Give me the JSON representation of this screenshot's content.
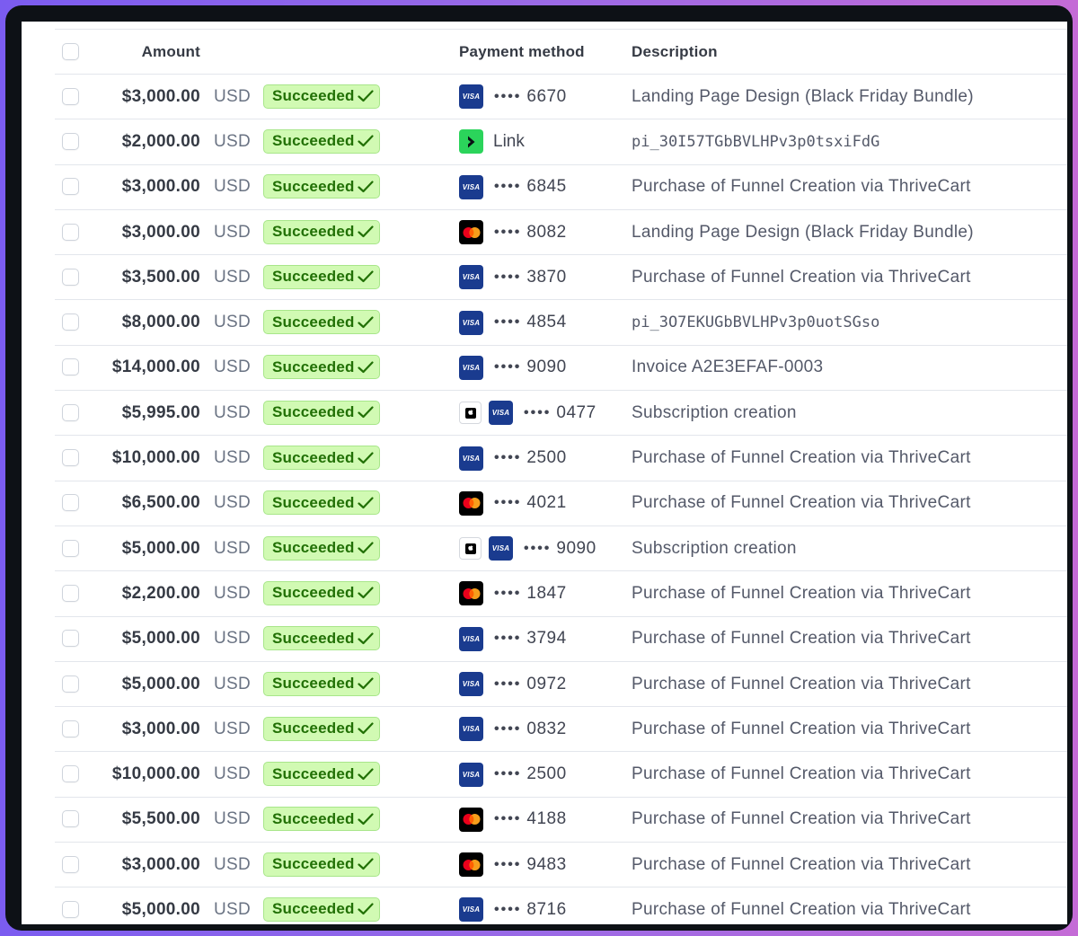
{
  "table": {
    "headers": {
      "amount": "Amount",
      "payment_method": "Payment method",
      "description": "Description"
    },
    "rows": [
      {
        "amount": "$3,000.00",
        "currency": "USD",
        "status": "Succeeded",
        "method": "visa",
        "last4": "6670",
        "description": "Landing Page Design (Black Friday Bundle)",
        "mono": false
      },
      {
        "amount": "$2,000.00",
        "currency": "USD",
        "status": "Succeeded",
        "method": "link",
        "link_label": "Link",
        "description": "pi_30I57TGbBVLHPv3p0tsxiFdG",
        "mono": true
      },
      {
        "amount": "$3,000.00",
        "currency": "USD",
        "status": "Succeeded",
        "method": "visa",
        "last4": "6845",
        "description": "Purchase of Funnel Creation via ThriveCart",
        "mono": false
      },
      {
        "amount": "$3,000.00",
        "currency": "USD",
        "status": "Succeeded",
        "method": "mastercard",
        "last4": "8082",
        "description": "Landing Page Design (Black Friday Bundle)",
        "mono": false
      },
      {
        "amount": "$3,500.00",
        "currency": "USD",
        "status": "Succeeded",
        "method": "visa",
        "last4": "3870",
        "description": "Purchase of Funnel Creation via ThriveCart",
        "mono": false
      },
      {
        "amount": "$8,000.00",
        "currency": "USD",
        "status": "Succeeded",
        "method": "visa",
        "last4": "4854",
        "description": "pi_3O7EKUGbBVLHPv3p0uotSGso",
        "mono": true
      },
      {
        "amount": "$14,000.00",
        "currency": "USD",
        "status": "Succeeded",
        "method": "visa",
        "last4": "9090",
        "description": "Invoice A2E3EFAF-0003",
        "mono": false
      },
      {
        "amount": "$5,995.00",
        "currency": "USD",
        "status": "Succeeded",
        "method": "applepay-visa",
        "last4": "0477",
        "description": "Subscription creation",
        "mono": false
      },
      {
        "amount": "$10,000.00",
        "currency": "USD",
        "status": "Succeeded",
        "method": "visa",
        "last4": "2500",
        "description": "Purchase of Funnel Creation via ThriveCart",
        "mono": false
      },
      {
        "amount": "$6,500.00",
        "currency": "USD",
        "status": "Succeeded",
        "method": "mastercard",
        "last4": "4021",
        "description": "Purchase of Funnel Creation via ThriveCart",
        "mono": false
      },
      {
        "amount": "$5,000.00",
        "currency": "USD",
        "status": "Succeeded",
        "method": "applepay-visa",
        "last4": "9090",
        "description": "Subscription creation",
        "mono": false
      },
      {
        "amount": "$2,200.00",
        "currency": "USD",
        "status": "Succeeded",
        "method": "mastercard",
        "last4": "1847",
        "description": "Purchase of Funnel Creation via ThriveCart",
        "mono": false
      },
      {
        "amount": "$5,000.00",
        "currency": "USD",
        "status": "Succeeded",
        "method": "visa",
        "last4": "3794",
        "description": "Purchase of Funnel Creation via ThriveCart",
        "mono": false
      },
      {
        "amount": "$5,000.00",
        "currency": "USD",
        "status": "Succeeded",
        "method": "visa",
        "last4": "0972",
        "description": "Purchase of Funnel Creation via ThriveCart",
        "mono": false
      },
      {
        "amount": "$3,000.00",
        "currency": "USD",
        "status": "Succeeded",
        "method": "visa",
        "last4": "0832",
        "description": "Purchase of Funnel Creation via ThriveCart",
        "mono": false
      },
      {
        "amount": "$10,000.00",
        "currency": "USD",
        "status": "Succeeded",
        "method": "visa",
        "last4": "2500",
        "description": "Purchase of Funnel Creation via ThriveCart",
        "mono": false
      },
      {
        "amount": "$5,500.00",
        "currency": "USD",
        "status": "Succeeded",
        "method": "mastercard",
        "last4": "4188",
        "description": "Purchase of Funnel Creation via ThriveCart",
        "mono": false
      },
      {
        "amount": "$3,000.00",
        "currency": "USD",
        "status": "Succeeded",
        "method": "mastercard",
        "last4": "9483",
        "description": "Purchase of Funnel Creation via ThriveCart",
        "mono": false
      },
      {
        "amount": "$5,000.00",
        "currency": "USD",
        "status": "Succeeded",
        "method": "visa",
        "last4": "8716",
        "description": "Purchase of Funnel Creation via ThriveCart",
        "mono": false
      }
    ]
  },
  "icons": {
    "visa_mark": "VISA",
    "masked_dots": "••••",
    "status_check": "checkmark-icon"
  },
  "colors": {
    "success_bg": "#d1fab3",
    "success_text": "#217005",
    "visa_blue": "#1a3b8f",
    "link_green": "#2bd45b",
    "frame_gradient_left": "#7b5cf0",
    "frame_gradient_right": "#c46bd6"
  }
}
